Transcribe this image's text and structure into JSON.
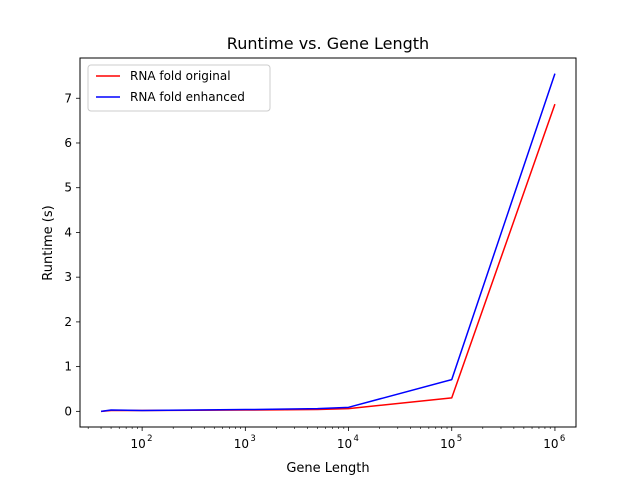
{
  "chart_data": {
    "type": "line",
    "title": "Runtime vs. Gene Length",
    "xlabel": "Gene Length",
    "ylabel": "Runtime (s)",
    "xscale": "log",
    "xlim": [
      25,
      1600000
    ],
    "ylim": [
      -0.35,
      7.9
    ],
    "grid": false,
    "legend_position": "top-left",
    "x_ticks": [
      {
        "value": 100,
        "base": "10",
        "exp": "2"
      },
      {
        "value": 1000,
        "base": "10",
        "exp": "3"
      },
      {
        "value": 10000,
        "base": "10",
        "exp": "4"
      },
      {
        "value": 100000,
        "base": "10",
        "exp": "5"
      },
      {
        "value": 1000000,
        "base": "10",
        "exp": "6"
      }
    ],
    "y_ticks": [
      "0",
      "1",
      "2",
      "3",
      "4",
      "5",
      "6",
      "7"
    ],
    "x": [
      40,
      50,
      100,
      1000,
      5000,
      10000,
      100000,
      1000000
    ],
    "series": [
      {
        "name": "RNA fold original",
        "color": "#ff0000",
        "values": [
          0.0,
          0.02,
          0.02,
          0.03,
          0.04,
          0.06,
          0.3,
          6.87
        ]
      },
      {
        "name": "RNA fold enhanced",
        "color": "#0000ff",
        "values": [
          0.0,
          0.03,
          0.02,
          0.04,
          0.06,
          0.09,
          0.71,
          7.55
        ]
      }
    ]
  }
}
